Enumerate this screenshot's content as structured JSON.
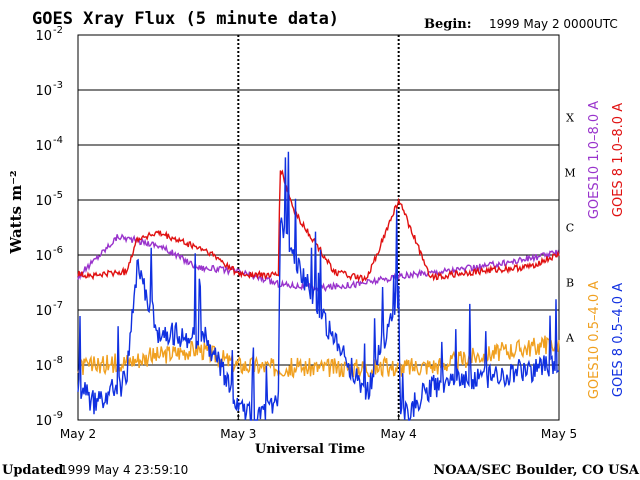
{
  "header": {
    "title": "GOES Xray Flux (5 minute data)",
    "begin_label": "Begin:",
    "begin_value": "1999 May 2 0000UTC"
  },
  "footer": {
    "updated_label": "Updated",
    "updated_value": "1999 May  4 23:59:10",
    "credit": "NOAA/SEC Boulder, CO USA"
  },
  "colors": {
    "goes10_long": "#9933cc",
    "goes8_long": "#e01010",
    "goes10_short": "#f0a020",
    "goes8_short": "#1030e0",
    "frame": "#000000"
  },
  "chart_data": {
    "type": "line",
    "title": "GOES Xray Flux (5 minute data)",
    "xlabel": "Universal Time",
    "ylabel": "Watts m⁻²",
    "yscale": "log",
    "ylim": [
      1e-09,
      0.01
    ],
    "x_ticks": [
      "May 2",
      "May 3",
      "May 4",
      "May 5"
    ],
    "y_ticks": [
      {
        "base": "10",
        "exp": "-2"
      },
      {
        "base": "10",
        "exp": "-3"
      },
      {
        "base": "10",
        "exp": "-4"
      },
      {
        "base": "10",
        "exp": "-5"
      },
      {
        "base": "10",
        "exp": "-6"
      },
      {
        "base": "10",
        "exp": "-7"
      },
      {
        "base": "10",
        "exp": "-8"
      },
      {
        "base": "10",
        "exp": "-9"
      }
    ],
    "flare_classes": [
      {
        "label": "X",
        "flux": 0.0001
      },
      {
        "label": "M",
        "flux": 1e-05
      },
      {
        "label": "C",
        "flux": 1e-06
      },
      {
        "label": "B",
        "flux": 1e-07
      },
      {
        "label": "A",
        "flux": 1e-08
      }
    ],
    "grid": true,
    "series": [
      {
        "name": "GOES10 1.0–8.0 A",
        "color": "#9933cc",
        "x": [
          0.0,
          0.25,
          0.5,
          0.75,
          1.0,
          1.25,
          1.5,
          1.75,
          2.0,
          2.25,
          2.5,
          2.75,
          3.0
        ],
        "y": [
          4e-07,
          2.2e-06,
          1.5e-06,
          6e-07,
          5e-07,
          3e-07,
          2.5e-07,
          3e-07,
          4e-07,
          5e-07,
          6e-07,
          8e-07,
          1.1e-06
        ]
      },
      {
        "name": "GOES 8 1.0–8.0 A",
        "color": "#e01010",
        "x": [
          0.0,
          0.1,
          0.3,
          0.37,
          0.5,
          0.8,
          0.95,
          1.0,
          1.25,
          1.26,
          1.35,
          1.6,
          1.8,
          2.0,
          2.2,
          2.5,
          2.8,
          3.0
        ],
        "y": [
          4.5e-07,
          4.2e-07,
          5e-07,
          2e-06,
          2.5e-06,
          1.2e-06,
          6e-07,
          4.5e-07,
          4.2e-07,
          4e-05,
          6e-06,
          5e-07,
          3.5e-07,
          1e-05,
          4e-07,
          5e-07,
          6e-07,
          1e-06
        ]
      },
      {
        "name": "GOES10 0.5–4.0 A",
        "color": "#f0a020",
        "x": [
          0.0,
          0.25,
          0.5,
          0.75,
          1.0,
          1.25,
          1.5,
          1.75,
          2.0,
          2.25,
          2.5,
          2.75,
          3.0
        ],
        "y": [
          9e-09,
          1.1e-08,
          1.5e-08,
          2e-08,
          1e-08,
          9e-09,
          9e-09,
          9e-09,
          9e-09,
          1e-08,
          1.5e-08,
          2e-08,
          2.5e-08
        ]
      },
      {
        "name": "GOES 8 0.5–4.0 A",
        "color": "#1030e0",
        "x": [
          0.0,
          0.1,
          0.3,
          0.37,
          0.5,
          0.8,
          1.0,
          1.1,
          1.25,
          1.26,
          1.35,
          1.6,
          1.8,
          2.0,
          2.01,
          2.2,
          2.5,
          2.8,
          3.0
        ],
        "y": [
          4e-09,
          2e-09,
          5e-09,
          6e-07,
          4e-08,
          3e-08,
          2e-09,
          1e-09,
          2e-09,
          4e-06,
          8e-07,
          3e-08,
          3e-09,
          2e-07,
          1e-09,
          4e-09,
          6e-09,
          8e-09,
          1e-08
        ]
      }
    ]
  }
}
